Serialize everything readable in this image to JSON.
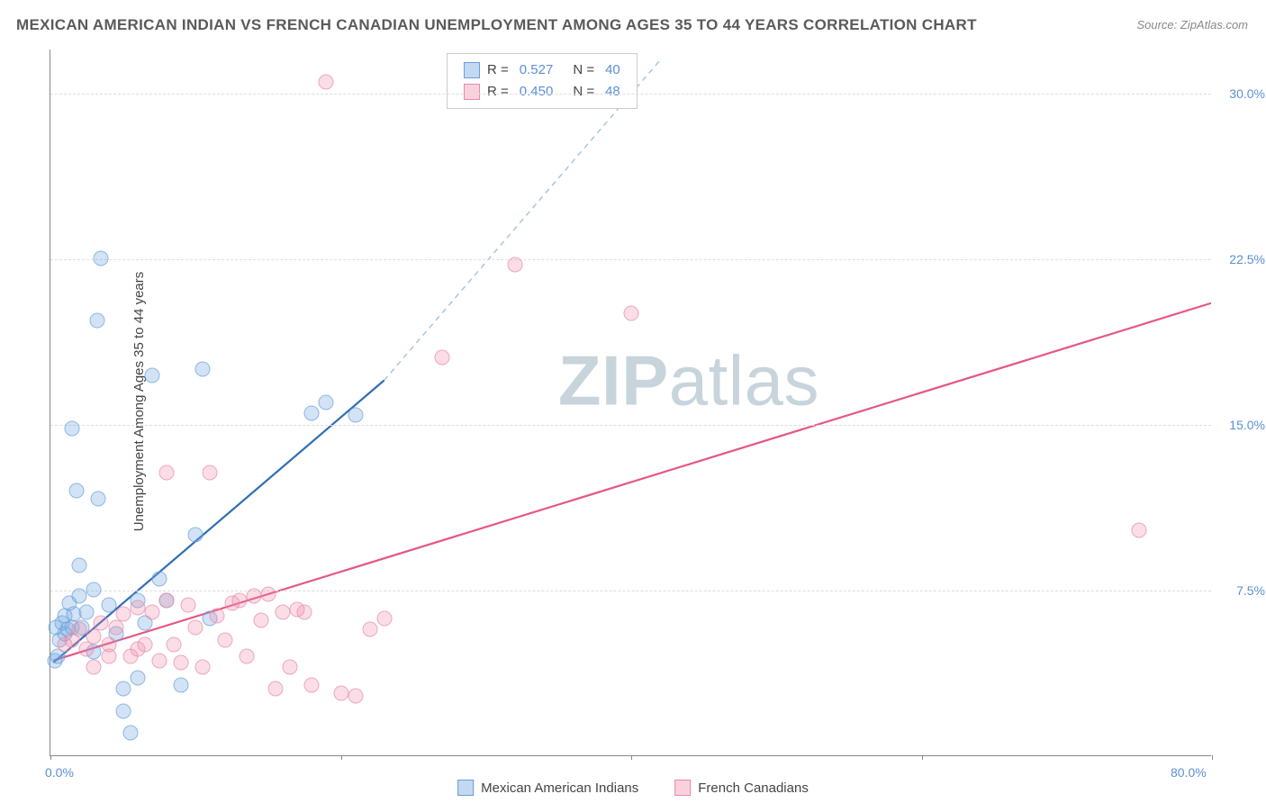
{
  "title": "MEXICAN AMERICAN INDIAN VS FRENCH CANADIAN UNEMPLOYMENT AMONG AGES 35 TO 44 YEARS CORRELATION CHART",
  "source": "Source: ZipAtlas.com",
  "y_label": "Unemployment Among Ages 35 to 44 years",
  "watermark_zip": "ZIP",
  "watermark_atlas": "atlas",
  "chart": {
    "type": "scatter",
    "xlim": [
      0,
      80
    ],
    "ylim": [
      0,
      32
    ],
    "x_ticks": [
      0,
      20,
      40,
      60,
      80
    ],
    "x_tick_labels": {
      "0": "0.0%",
      "80": "80.0%"
    },
    "y_ticks": [
      7.5,
      15.0,
      22.5,
      30.0
    ],
    "y_tick_labels": [
      "7.5%",
      "15.0%",
      "22.5%",
      "30.0%"
    ],
    "grid_color": "#dddddd",
    "border_color": "#888888",
    "background_color": "#ffffff",
    "series": [
      {
        "name": "Mexican American Indians",
        "key": "blue",
        "marker_color": "rgba(120,170,225,0.45)",
        "marker_border": "#6a9fd8",
        "line_color": "#2f6db5",
        "dash_color": "#a8c5dc",
        "R": "0.527",
        "N": "40",
        "trend": {
          "x1": 0.2,
          "y1": 4.2,
          "x2": 23,
          "y2": 17.0
        },
        "trend_dash": {
          "x1": 23,
          "y1": 17.0,
          "x2": 42,
          "y2": 31.5
        },
        "points": [
          [
            0.3,
            4.3
          ],
          [
            0.4,
            5.8
          ],
          [
            0.5,
            4.5
          ],
          [
            0.6,
            5.2
          ],
          [
            0.8,
            6.0
          ],
          [
            1.0,
            5.5
          ],
          [
            1.0,
            6.3
          ],
          [
            1.2,
            5.7
          ],
          [
            1.3,
            6.9
          ],
          [
            1.5,
            5.8
          ],
          [
            1.5,
            14.8
          ],
          [
            1.6,
            6.4
          ],
          [
            1.8,
            12.0
          ],
          [
            2.0,
            8.6
          ],
          [
            2.0,
            7.2
          ],
          [
            2.2,
            5.8
          ],
          [
            2.5,
            6.5
          ],
          [
            3.0,
            7.5
          ],
          [
            3.0,
            4.7
          ],
          [
            3.2,
            19.7
          ],
          [
            3.3,
            11.6
          ],
          [
            3.5,
            22.5
          ],
          [
            4.0,
            6.8
          ],
          [
            4.5,
            5.5
          ],
          [
            5.0,
            2.0
          ],
          [
            5.0,
            3.0
          ],
          [
            5.5,
            1.0
          ],
          [
            6.0,
            7.0
          ],
          [
            6.0,
            3.5
          ],
          [
            6.5,
            6.0
          ],
          [
            7.0,
            17.2
          ],
          [
            7.5,
            8.0
          ],
          [
            8.0,
            7.0
          ],
          [
            9.0,
            3.2
          ],
          [
            10.0,
            10.0
          ],
          [
            10.5,
            17.5
          ],
          [
            11.0,
            6.2
          ],
          [
            18.0,
            15.5
          ],
          [
            19.0,
            16.0
          ],
          [
            21.0,
            15.4
          ]
        ]
      },
      {
        "name": "French Canadians",
        "key": "pink",
        "marker_color": "rgba(240,140,170,0.40)",
        "marker_border": "#e68aab",
        "line_color": "#e55686",
        "R": "0.450",
        "N": "48",
        "trend": {
          "x1": 0.2,
          "y1": 4.3,
          "x2": 80,
          "y2": 20.5
        },
        "points": [
          [
            1.0,
            5.0
          ],
          [
            1.5,
            5.2
          ],
          [
            2.0,
            5.7
          ],
          [
            2.5,
            4.8
          ],
          [
            3.0,
            5.4
          ],
          [
            3.5,
            6.0
          ],
          [
            4.0,
            4.5
          ],
          [
            4.5,
            5.8
          ],
          [
            5.0,
            6.4
          ],
          [
            5.5,
            4.5
          ],
          [
            6.0,
            6.7
          ],
          [
            6.5,
            5.0
          ],
          [
            7.0,
            6.5
          ],
          [
            7.5,
            4.3
          ],
          [
            8.0,
            7.0
          ],
          [
            8.0,
            12.8
          ],
          [
            8.5,
            5.0
          ],
          [
            9.0,
            4.2
          ],
          [
            9.5,
            6.8
          ],
          [
            10.0,
            5.8
          ],
          [
            10.5,
            4.0
          ],
          [
            11.0,
            12.8
          ],
          [
            11.5,
            6.3
          ],
          [
            12.0,
            5.2
          ],
          [
            12.5,
            6.9
          ],
          [
            13.0,
            7.0
          ],
          [
            13.5,
            4.5
          ],
          [
            14.0,
            7.2
          ],
          [
            14.5,
            6.1
          ],
          [
            15.0,
            7.3
          ],
          [
            15.5,
            3.0
          ],
          [
            16.0,
            6.5
          ],
          [
            16.5,
            4.0
          ],
          [
            17.0,
            6.6
          ],
          [
            17.5,
            6.5
          ],
          [
            18.0,
            3.2
          ],
          [
            19.0,
            30.5
          ],
          [
            20.0,
            2.8
          ],
          [
            21.0,
            2.7
          ],
          [
            22.0,
            5.7
          ],
          [
            23.0,
            6.2
          ],
          [
            27.0,
            18.0
          ],
          [
            32.0,
            22.2
          ],
          [
            40.0,
            20.0
          ],
          [
            75.0,
            10.2
          ],
          [
            3.0,
            4.0
          ],
          [
            4.0,
            5.0
          ],
          [
            6.0,
            4.8
          ]
        ]
      }
    ]
  },
  "legend_top": {
    "r_label": "R  =",
    "n_label": "N  ="
  },
  "legend_bottom": {
    "a": "Mexican American Indians",
    "b": "French Canadians"
  }
}
